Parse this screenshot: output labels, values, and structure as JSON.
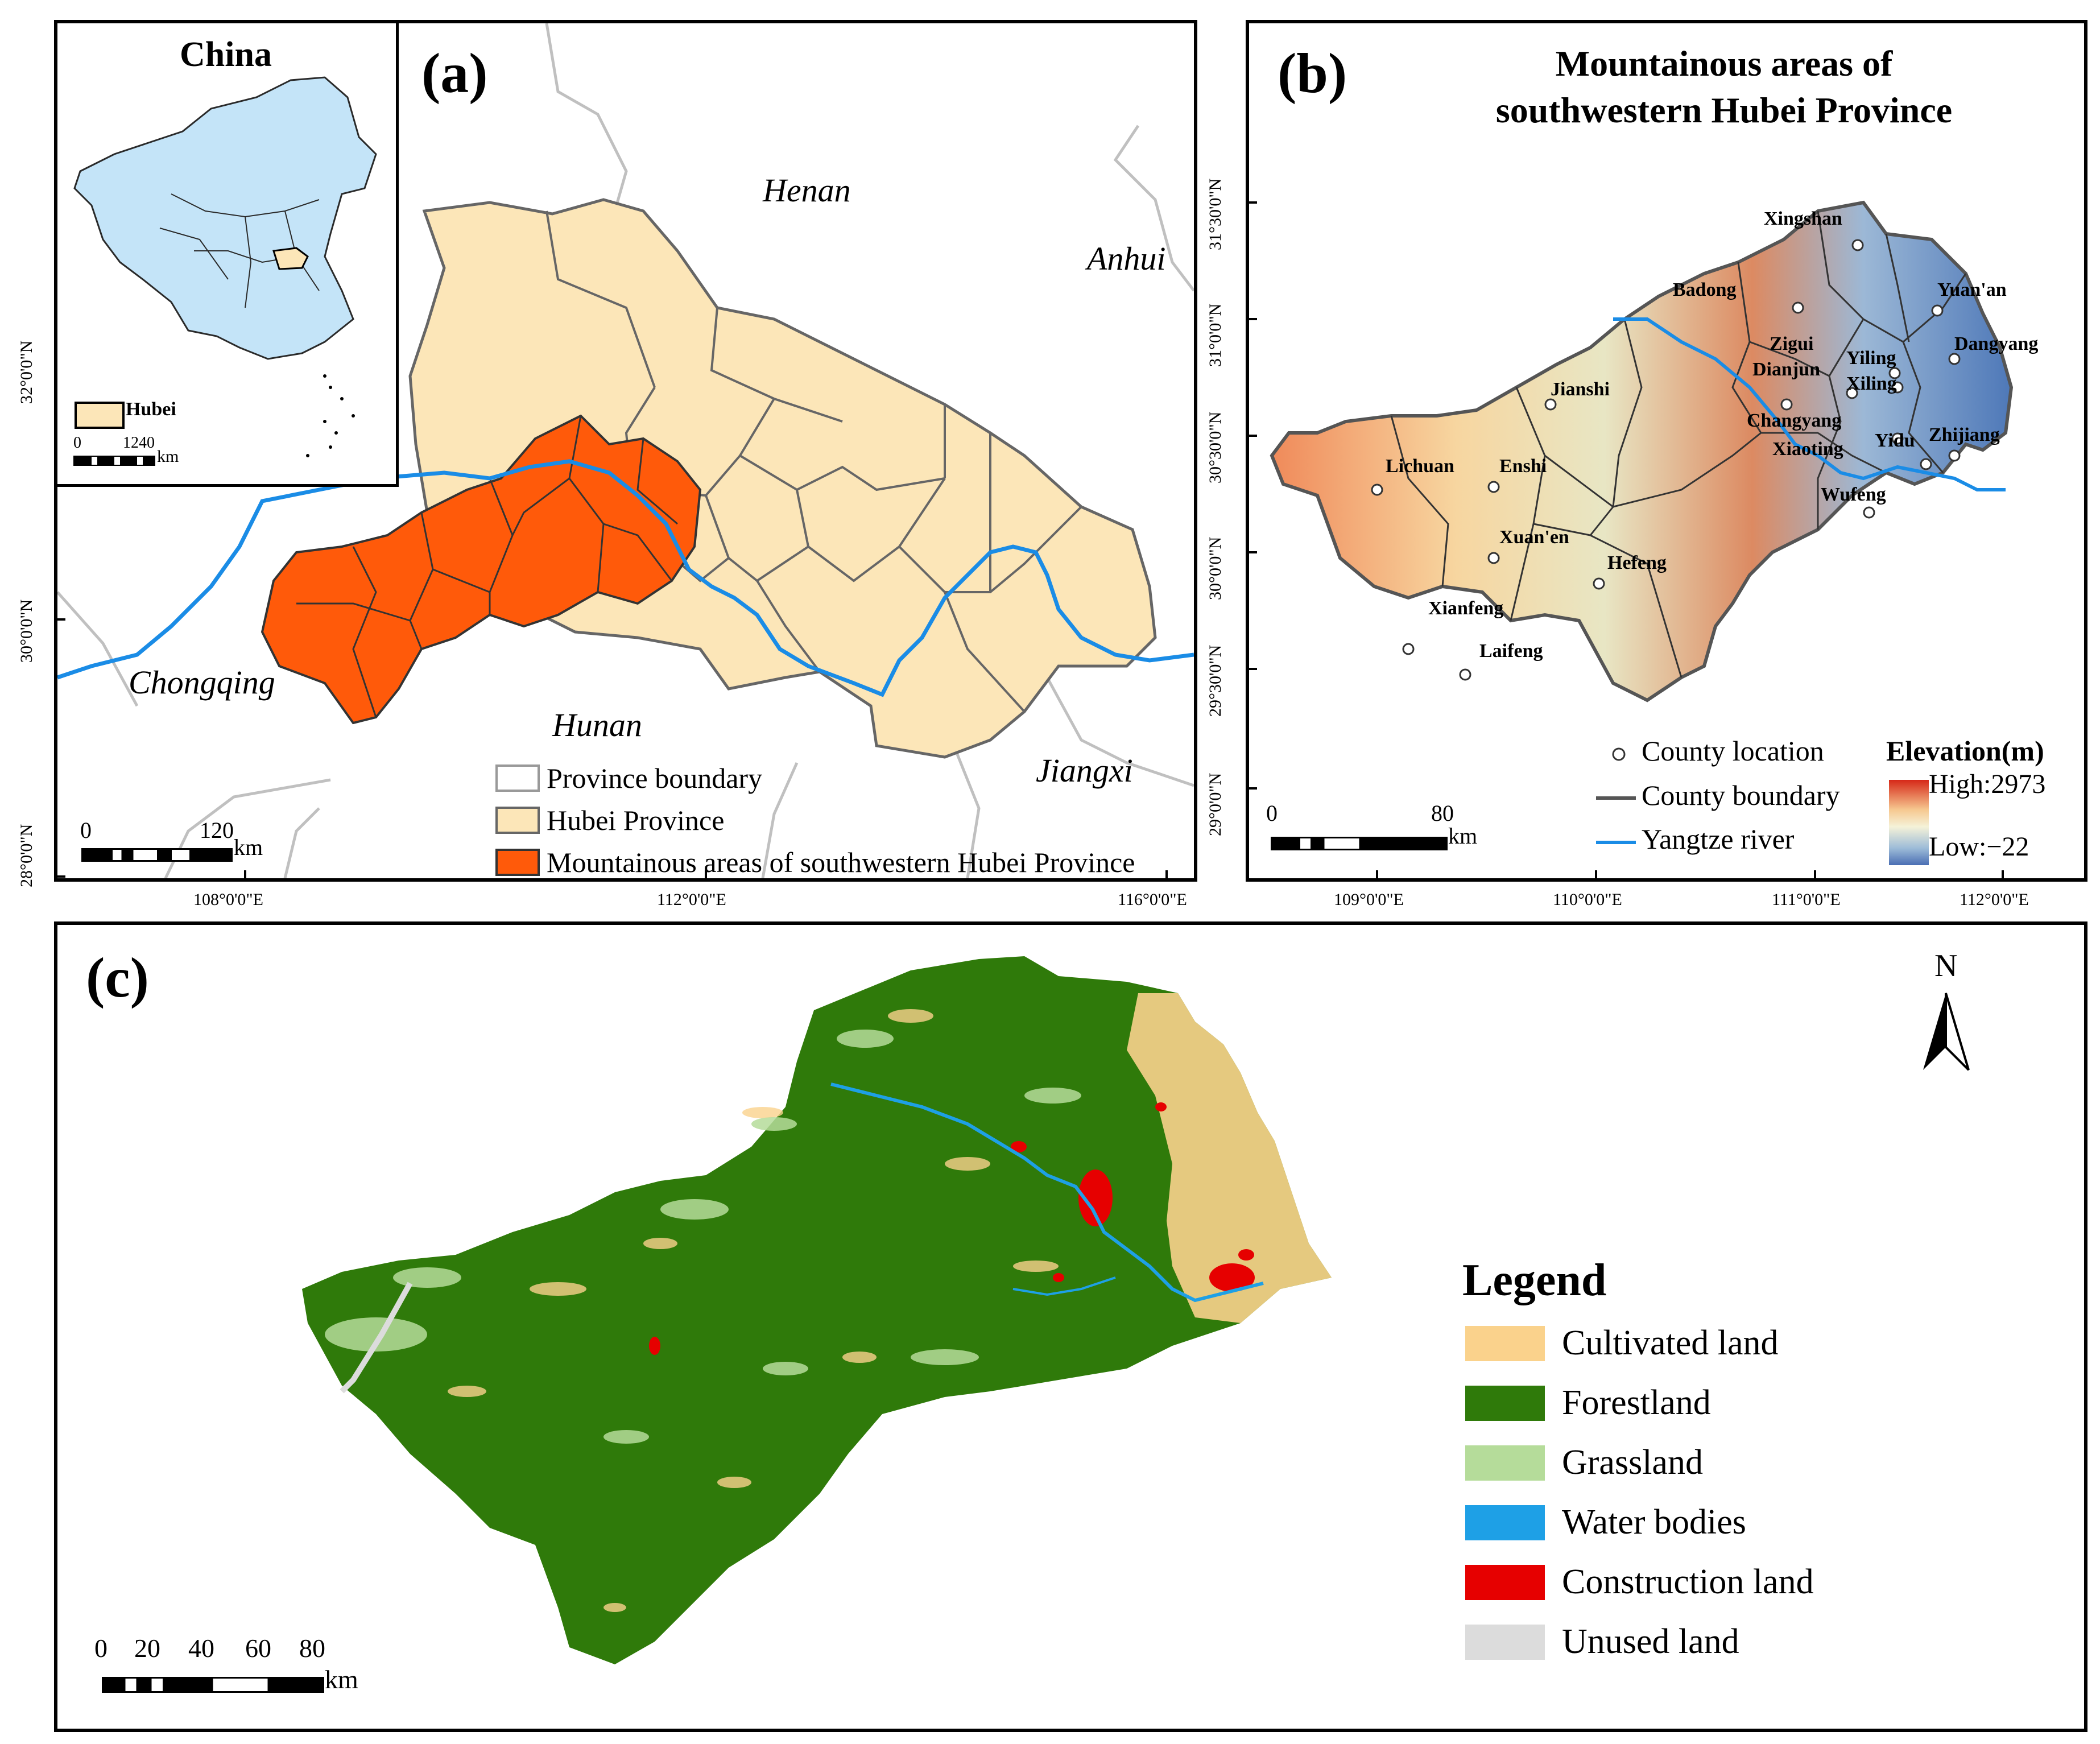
{
  "panel_a": {
    "letter": "(a)",
    "inset": {
      "title": "China",
      "legend_label": "Hubei",
      "scale_labels": [
        "0",
        "1240"
      ],
      "scale_unit": "km"
    },
    "province_labels": [
      "Henan",
      "Anhui",
      "Chongqing",
      "Hunan",
      "Jiangxi"
    ],
    "legend": [
      {
        "label": "Province boundary",
        "color": "#ffffff",
        "border": "#999999"
      },
      {
        "label": "Hubei Province",
        "color": "#fce6b8",
        "border": "#666666"
      },
      {
        "label": "Mountainous areas of southwestern Hubei Province",
        "color": "#ff5a0a",
        "border": "#333333"
      }
    ],
    "scale_labels": [
      "0",
      "120"
    ],
    "scale_unit": "km",
    "lat_ticks": [
      "32°0'0\"N",
      "30°0'0\"N",
      "28°0'0\"N"
    ],
    "lon_ticks": [
      "108°0'0\"E",
      "112°0'0\"E",
      "116°0'0\"E"
    ]
  },
  "panel_b": {
    "letter": "(b)",
    "title_line1": "Mountainous areas of",
    "title_line2": "southwestern Hubei Province",
    "counties": [
      "Xingshan",
      "Badong",
      "Yuan'an",
      "Zigui",
      "Yiling",
      "Dangyang",
      "Dianjun",
      "Xiling",
      "Jianshi",
      "Changyang",
      "Xiaoting",
      "Yidu",
      "Zhijiang",
      "Lichuan",
      "Enshi",
      "Wufeng",
      "Xuan'en",
      "Hefeng",
      "Xianfeng",
      "Laifeng"
    ],
    "legend": {
      "county_location": "County location",
      "county_boundary": "County boundary",
      "yangtze": "Yangtze river",
      "elevation_title": "Elevation(m)",
      "high": "High:2973",
      "low": "Low:−22"
    },
    "scale_labels": [
      "0",
      "80"
    ],
    "scale_unit": "km",
    "lat_ticks": [
      "31°30'0\"N",
      "31°0'0\"N",
      "30°30'0\"N",
      "30°0'0\"N",
      "29°30'0\"N",
      "29°0'0\"N"
    ],
    "lon_ticks": [
      "109°0'0\"E",
      "110°0'0\"E",
      "111°0'0\"E",
      "112°0'0\"E"
    ]
  },
  "panel_c": {
    "letter": "(c)",
    "north": "N",
    "legend_title": "Legend",
    "legend": [
      {
        "label": "Cultivated land",
        "color": "#fad28c"
      },
      {
        "label": "Forestland",
        "color": "#2f7a0a"
      },
      {
        "label": "Grassland",
        "color": "#b5dc9a"
      },
      {
        "label": "Water bodies",
        "color": "#1ea0e6"
      },
      {
        "label": "Construction land",
        "color": "#e60000"
      },
      {
        "label": "Unused land",
        "color": "#dcdcdc"
      }
    ],
    "scale_labels": [
      "0",
      "20",
      "40",
      "60",
      "80"
    ],
    "scale_unit": "km"
  }
}
